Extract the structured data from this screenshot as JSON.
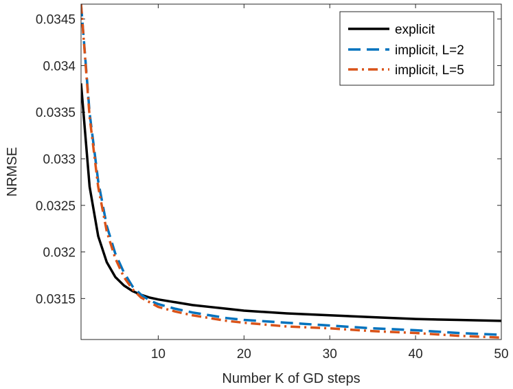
{
  "chart_data": {
    "type": "line",
    "title": "",
    "xlabel": "Number K of GD steps",
    "ylabel": "NRMSE",
    "xlim": [
      1,
      50
    ],
    "ylim": [
      0.03106,
      0.03466
    ],
    "xticks": [
      10,
      20,
      30,
      40,
      50
    ],
    "xtick_labels": [
      "10",
      "20",
      "30",
      "40",
      "50"
    ],
    "yticks": [
      0.0315,
      0.032,
      0.0325,
      0.033,
      0.0335,
      0.034,
      0.0345
    ],
    "ytick_labels": [
      "0.0315",
      "0.032",
      "0.0325",
      "0.033",
      "0.0335",
      "0.034",
      "0.0345"
    ],
    "grid": false,
    "legend_position": "top-right",
    "x": [
      1,
      2,
      3,
      4,
      5,
      6,
      7,
      8,
      9,
      10,
      12,
      14,
      16,
      18,
      20,
      25,
      30,
      35,
      40,
      45,
      50
    ],
    "series": [
      {
        "name": "explicit",
        "color": "#000000",
        "style": "solid",
        "values": [
          0.03381,
          0.0327,
          0.03217,
          0.03189,
          0.03173,
          0.03164,
          0.03158,
          0.03154,
          0.03151,
          0.03149,
          0.03146,
          0.03143,
          0.03141,
          0.03139,
          0.03137,
          0.03134,
          0.03132,
          0.0313,
          0.03128,
          0.03127,
          0.03126
        ]
      },
      {
        "name": "implicit, L=2",
        "color": "#0072BD",
        "style": "dashed",
        "values": [
          0.03466,
          0.03349,
          0.03276,
          0.03228,
          0.03198,
          0.03178,
          0.03163,
          0.03154,
          0.03148,
          0.03144,
          0.03139,
          0.03135,
          0.03132,
          0.03129,
          0.03127,
          0.03124,
          0.03121,
          0.03118,
          0.03116,
          0.03113,
          0.03111
        ]
      },
      {
        "name": "implicit, L=5",
        "color": "#D95319",
        "style": "dashdot",
        "values": [
          0.03466,
          0.03345,
          0.0327,
          0.03222,
          0.03193,
          0.03173,
          0.0316,
          0.03151,
          0.03146,
          0.03141,
          0.03136,
          0.03132,
          0.03129,
          0.03126,
          0.03124,
          0.0312,
          0.03118,
          0.03115,
          0.03113,
          0.0311,
          0.03108
        ]
      }
    ]
  }
}
